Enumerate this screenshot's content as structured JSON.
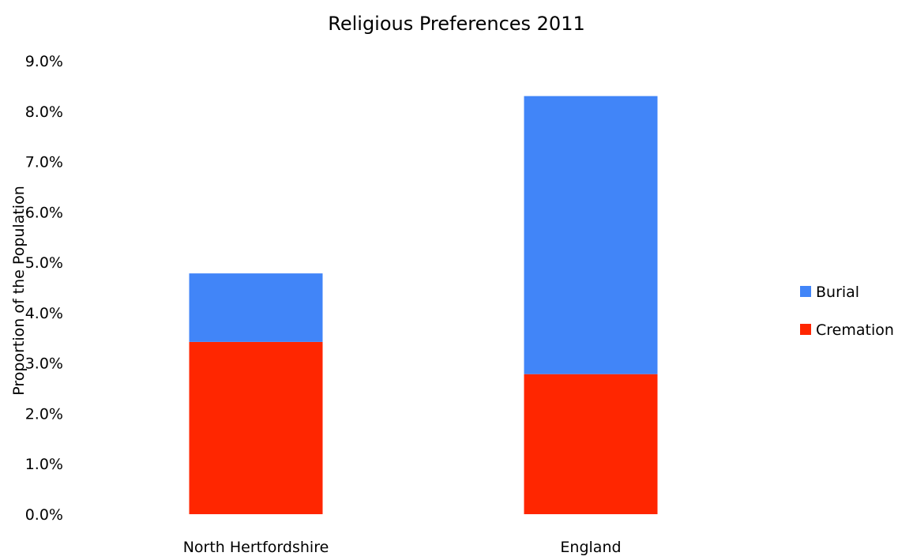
{
  "chart_data": {
    "type": "bar",
    "stacked": true,
    "title": "Religious Preferences 2011",
    "xlabel": "",
    "ylabel": "Proportion of the Population",
    "categories": [
      "North Hertfordshire",
      "England"
    ],
    "series": [
      {
        "name": "Cremation",
        "color": "#ff2600",
        "values": [
          3.42,
          2.78
        ]
      },
      {
        "name": "Burial",
        "color": "#4185f8",
        "values": [
          1.36,
          5.52
        ]
      }
    ],
    "ylim": [
      0,
      9
    ],
    "yticks": [
      "0.0%",
      "1.0%",
      "2.0%",
      "3.0%",
      "4.0%",
      "5.0%",
      "6.0%",
      "7.0%",
      "8.0%",
      "9.0%"
    ],
    "grid": false,
    "legend_position": "right",
    "legend_order": [
      "Burial",
      "Cremation"
    ]
  }
}
